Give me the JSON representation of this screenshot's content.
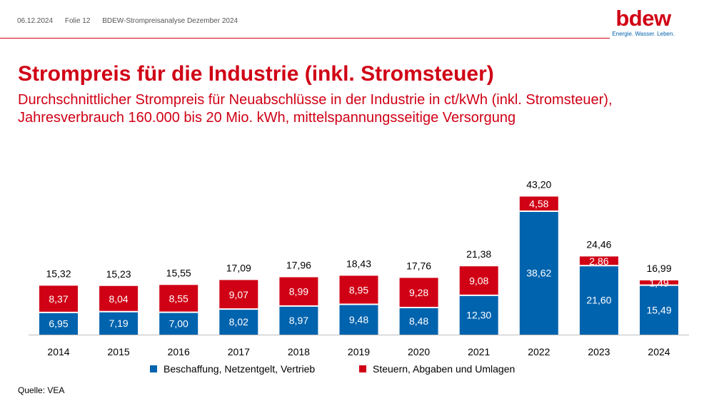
{
  "header": {
    "date": "06.12.2024",
    "slide": "Folie 12",
    "doc_title": "BDEW-Strompreisanalyse Dezember 2024"
  },
  "logo": {
    "text": "bdew",
    "tagline": "Energie. Wasser. Leben."
  },
  "colors": {
    "blue": "#0063ae",
    "red": "#d00015",
    "accent": "#d00015"
  },
  "chart_data": {
    "type": "bar",
    "stacked": true,
    "title": "Strompreis für die Industrie (inkl. Stromsteuer)",
    "subtitle": [
      "Durchschnittlicher Strompreis für Neuabschlüsse in der Industrie in ct/kWh (inkl. Stromsteuer),",
      "Jahresverbrauch 160.000 bis 20 Mio. kWh, mittelspannungsseitige Versorgung"
    ],
    "categories": [
      "2014",
      "2015",
      "2016",
      "2017",
      "2018",
      "2019",
      "2020",
      "2021",
      "2022",
      "2023",
      "2024"
    ],
    "series": [
      {
        "name": "Beschaffung, Netzentgelt, Vertrieb",
        "labels": [
          "6,95",
          "7,19",
          "7,00",
          "8,02",
          "8,97",
          "9,48",
          "8,48",
          "12,30",
          "38,62",
          "21,60",
          "15,49"
        ],
        "values": [
          6.95,
          7.19,
          7.0,
          8.02,
          8.97,
          9.48,
          8.48,
          12.3,
          38.62,
          21.6,
          15.49
        ]
      },
      {
        "name": "Steuern, Abgaben und Umlagen",
        "labels": [
          "8,37",
          "8,04",
          "8,55",
          "9,07",
          "8,99",
          "8,95",
          "9,28",
          "9,08",
          "4,58",
          "2,86",
          "1,49"
        ],
        "values": [
          8.37,
          8.04,
          8.55,
          9.07,
          8.99,
          8.95,
          9.28,
          9.08,
          4.58,
          2.86,
          1.49
        ]
      }
    ],
    "total_labels": [
      "15,32",
      "15,23",
      "15,55",
      "17,09",
      "17,96",
      "18,43",
      "17,76",
      "21,38",
      "43,20",
      "24,46",
      "16,99"
    ],
    "totals": [
      15.32,
      15.23,
      15.55,
      17.09,
      17.96,
      18.43,
      17.76,
      21.38,
      43.2,
      24.46,
      16.99
    ],
    "xlabel": "",
    "ylabel": "ct/kWh",
    "ylim": [
      0,
      45
    ],
    "grid": false,
    "legend_position": "bottom"
  },
  "footer": {
    "source": "Quelle: VEA"
  }
}
